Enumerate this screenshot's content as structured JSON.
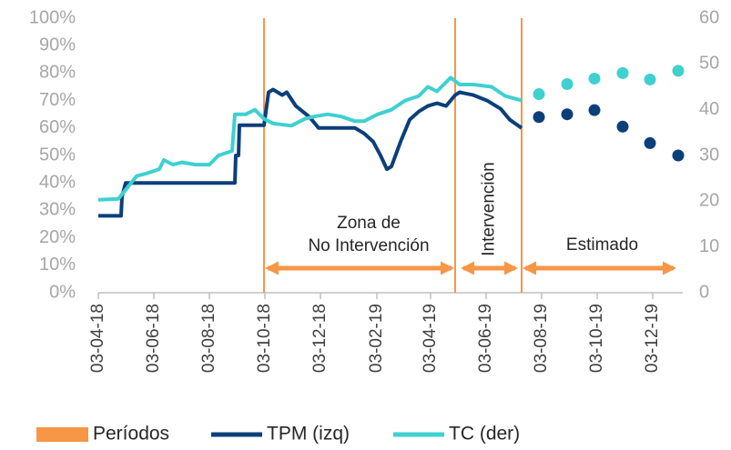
{
  "chart_data": {
    "type": "line",
    "xlim": [
      "2018-04-03",
      "2020-01-05"
    ],
    "xticks": [
      {
        "value": "2018-04-03",
        "label": "03-04-18"
      },
      {
        "value": "2018-06-03",
        "label": "03-06-18"
      },
      {
        "value": "2018-08-03",
        "label": "03-08-18"
      },
      {
        "value": "2018-10-03",
        "label": "03-10-18"
      },
      {
        "value": "2018-12-03",
        "label": "03-12-18"
      },
      {
        "value": "2019-02-03",
        "label": "03-02-19"
      },
      {
        "value": "2019-04-03",
        "label": "03-04-19"
      },
      {
        "value": "2019-06-03",
        "label": "03-06-19"
      },
      {
        "value": "2019-08-03",
        "label": "03-08-19"
      },
      {
        "value": "2019-10-03",
        "label": "03-10-19"
      },
      {
        "value": "2019-12-03",
        "label": "03-12-19"
      }
    ],
    "ylim": [
      0,
      100
    ],
    "yticks": [
      {
        "value": 0,
        "label": "0%"
      },
      {
        "value": 10,
        "label": "10%"
      },
      {
        "value": 20,
        "label": "20%"
      },
      {
        "value": 30,
        "label": "30%"
      },
      {
        "value": 40,
        "label": "40%"
      },
      {
        "value": 50,
        "label": "50%"
      },
      {
        "value": 60,
        "label": "60%"
      },
      {
        "value": 70,
        "label": "70%"
      },
      {
        "value": 80,
        "label": "80%"
      },
      {
        "value": 90,
        "label": "90%"
      },
      {
        "value": 100,
        "label": "100%"
      }
    ],
    "y2lim": [
      0,
      60
    ],
    "y2ticks": [
      0,
      10,
      20,
      30,
      40,
      50,
      60
    ],
    "periods": {
      "name": "Períodos",
      "color": "#f79646",
      "dates": [
        "2018-10-02",
        "2019-04-30",
        "2019-07-12"
      ]
    },
    "annotations": [
      [
        "Zona de",
        "No Intervención"
      ],
      [
        "Intervención"
      ],
      [
        "Estimado"
      ]
    ],
    "series": [
      {
        "name": "TPM (izq)",
        "color": "#0b3f7a",
        "axis": "y",
        "x": [
          "2018-04-03",
          "2018-04-28",
          "2018-04-29",
          "2018-05-03",
          "2018-08-31",
          "2018-09-01",
          "2018-09-04",
          "2018-09-05",
          "2018-10-02",
          "2018-10-07",
          "2018-10-12",
          "2018-10-22",
          "2018-10-27",
          "2018-11-06",
          "2018-11-21",
          "2018-12-01",
          "2019-01-10",
          "2019-01-20",
          "2019-01-30",
          "2019-02-07",
          "2019-02-14",
          "2019-02-19",
          "2019-03-01",
          "2019-03-11",
          "2019-03-21",
          "2019-03-31",
          "2019-04-10",
          "2019-04-20",
          "2019-04-30",
          "2019-05-05",
          "2019-05-20",
          "2019-06-04",
          "2019-06-19",
          "2019-06-29",
          "2019-07-12"
        ],
        "values": [
          28,
          28,
          35,
          40,
          40,
          50,
          50,
          61,
          61,
          73,
          74,
          72,
          73,
          68,
          64,
          60,
          60,
          58,
          55,
          50,
          45,
          46,
          55,
          63,
          66,
          68,
          69,
          68,
          72,
          73,
          72,
          70,
          67,
          63,
          60
        ],
        "forecast": {
          "x": [
            "2019-07-31",
            "2019-08-31",
            "2019-09-30",
            "2019-10-31",
            "2019-11-30",
            "2019-12-31"
          ],
          "values": [
            64,
            65,
            66.5,
            60.5,
            54.5,
            50
          ]
        }
      },
      {
        "name": "TC (der)",
        "color": "#3fd0d0",
        "axis": "y2",
        "x": [
          "2018-04-03",
          "2018-04-25",
          "2018-05-05",
          "2018-05-15",
          "2018-05-25",
          "2018-06-09",
          "2018-06-14",
          "2018-06-24",
          "2018-07-04",
          "2018-07-19",
          "2018-08-03",
          "2018-08-13",
          "2018-08-28",
          "2018-08-31",
          "2018-09-12",
          "2018-09-22",
          "2018-10-02",
          "2018-10-12",
          "2018-11-01",
          "2018-11-16",
          "2018-11-26",
          "2018-12-11",
          "2018-12-26",
          "2019-01-10",
          "2019-01-20",
          "2019-02-04",
          "2019-02-19",
          "2019-03-06",
          "2019-03-21",
          "2019-03-31",
          "2019-04-10",
          "2019-04-25",
          "2019-05-05",
          "2019-05-20",
          "2019-06-09",
          "2019-06-24",
          "2019-07-12"
        ],
        "values": [
          20.3,
          20.5,
          23,
          25.5,
          26,
          27,
          29,
          28,
          28.5,
          28,
          28,
          30,
          31,
          39,
          39,
          40,
          38,
          37,
          36.5,
          38,
          38.5,
          39,
          38.5,
          37.5,
          37.5,
          39,
          40,
          42,
          43,
          45,
          44,
          47,
          45.5,
          45.5,
          45,
          43,
          42
        ],
        "forecast": {
          "x": [
            "2019-07-31",
            "2019-08-31",
            "2019-09-30",
            "2019-10-31",
            "2019-11-30",
            "2019-12-31"
          ],
          "values": [
            43.4,
            45.6,
            46.8,
            48,
            46.6,
            48.5
          ]
        }
      }
    ]
  }
}
